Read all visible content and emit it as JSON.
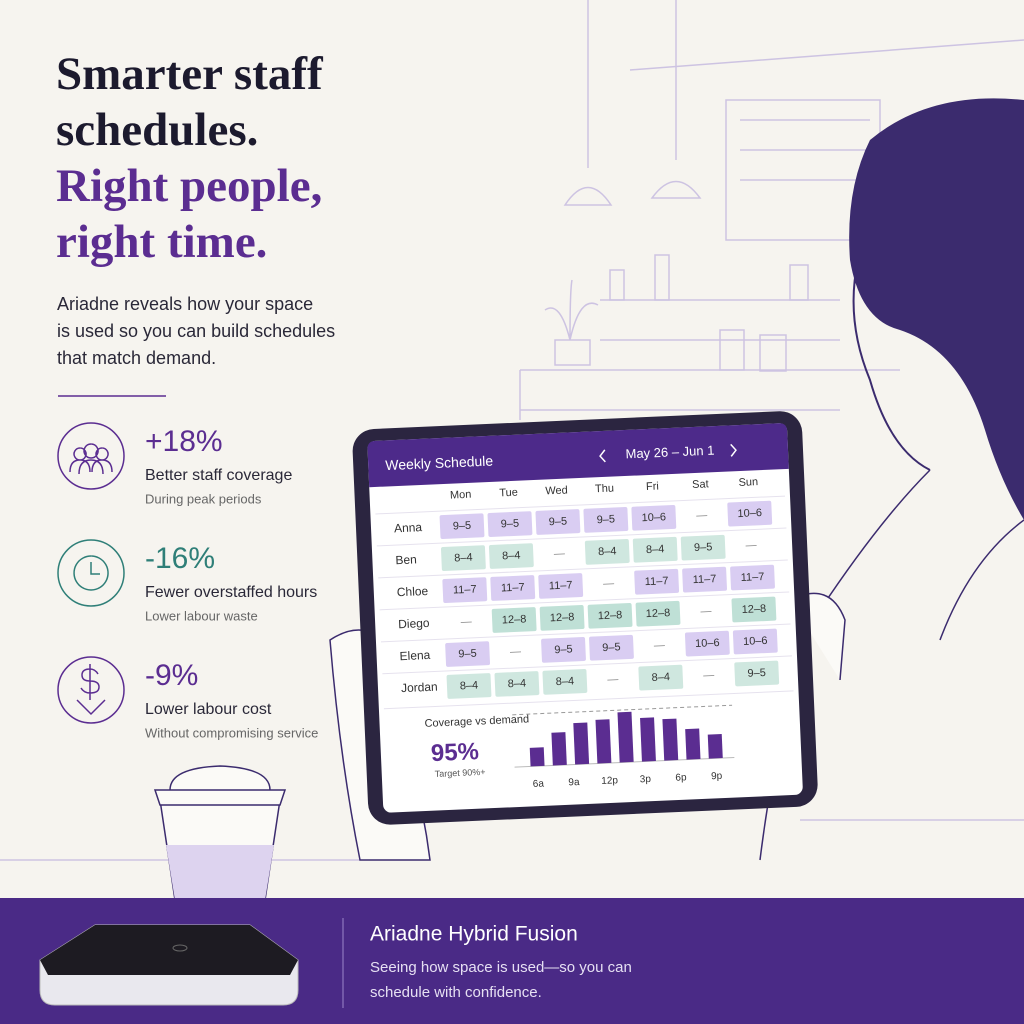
{
  "headline": {
    "lines": [
      "Smarter staff",
      "schedules.",
      "Right people,",
      "right time."
    ],
    "colors": [
      "#1c1a2e",
      "#1c1a2e",
      "#5b2d91",
      "#5b2d91"
    ]
  },
  "intro": [
    "Ariadne reveals how your space",
    "is used so you can build schedules",
    "that match demand."
  ],
  "stats": [
    {
      "value": "+18%",
      "label": "Better staff coverage",
      "note": "During peak periods",
      "color": "#5b2d91"
    },
    {
      "value": "-16%",
      "label": "Fewer overstaffed hours",
      "note": "Lower labour waste",
      "color": "#2f7f78"
    },
    {
      "value": "-9%",
      "label": "Lower labour cost",
      "note": "Without compromising service",
      "color": "#5b2d91"
    }
  ],
  "schedule": {
    "title": "Weekly Schedule",
    "date_range": "May 26 – Jun 1",
    "off_label": "—",
    "days": [
      "Mon",
      "Tue",
      "Wed",
      "Thu",
      "Fri",
      "Sat",
      "Sun"
    ],
    "rows": [
      {
        "name": "Anna",
        "color": "#d9cdf2",
        "shifts": [
          "9–5",
          "9–5",
          "9–5",
          "9–5",
          "10–6",
          null,
          "10–6"
        ]
      },
      {
        "name": "Ben",
        "color": "#cfe7df",
        "shifts": [
          "8–4",
          "8–4",
          null,
          "8–4",
          "8–4",
          "9–5",
          null
        ]
      },
      {
        "name": "Chloe",
        "color": "#d9cdf2",
        "shifts": [
          "11–7",
          "11–7",
          "11–7",
          null,
          "11–7",
          "11–7",
          "11–7"
        ]
      },
      {
        "name": "Diego",
        "color": "#bfe0d6",
        "shifts": [
          null,
          "12–8",
          "12–8",
          "12–8",
          "12–8",
          null,
          "12–8"
        ]
      },
      {
        "name": "Elena",
        "color": "#d9cdf2",
        "shifts": [
          "9–5",
          null,
          "9–5",
          "9–5",
          null,
          "10–6",
          "10–6"
        ]
      },
      {
        "name": "Jordan",
        "color": "#cfe7df",
        "shifts": [
          "8–4",
          "8–4",
          "8–4",
          null,
          "8–4",
          null,
          "9–5"
        ]
      }
    ]
  },
  "coverage": {
    "value": "95%",
    "target": "Target 90%+"
  },
  "chart_data": {
    "type": "bar",
    "title": "Coverage vs demand",
    "values": [
      17,
      30,
      38,
      40,
      46,
      40,
      38,
      28,
      22
    ],
    "x_labels": [
      "6a",
      "9a",
      "12p",
      "3p",
      "6p",
      "9p"
    ],
    "ylim": [
      0,
      55
    ],
    "target_line": 48,
    "color": "#5b2d91"
  },
  "footer": {
    "title": "Ariadne Hybrid Fusion",
    "text": [
      "Seeing how space is used—so you can",
      "schedule with confidence."
    ]
  }
}
